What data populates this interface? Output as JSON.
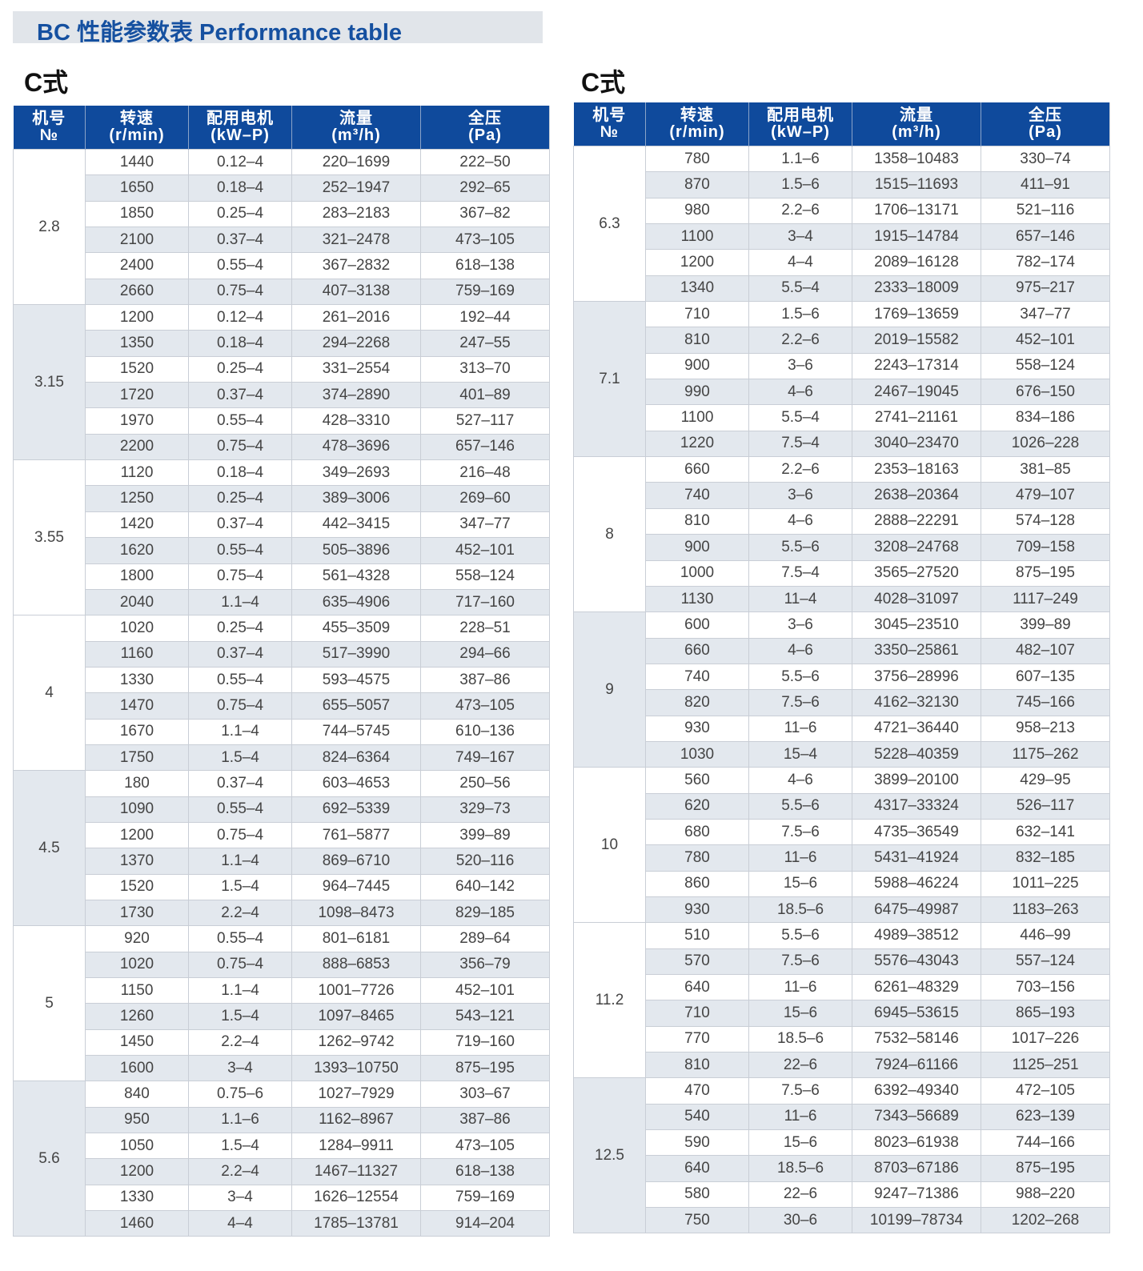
{
  "title": "BC 性能参数表  Performance table",
  "headers": {
    "no": [
      "机号",
      "№"
    ],
    "speed": [
      "转速",
      "(r/min)"
    ],
    "motor": [
      "配用电机",
      "(kW–P)"
    ],
    "flow": [
      "流量",
      "(m³/h)"
    ],
    "pressure": [
      "全压",
      "(Pa)"
    ]
  },
  "tables": [
    {
      "subtitle": "C式",
      "groups": [
        {
          "no": "2.8",
          "rows": [
            [
              "1440",
              "0.12–4",
              "220–1699",
              "222–50"
            ],
            [
              "1650",
              "0.18–4",
              "252–1947",
              "292–65"
            ],
            [
              "1850",
              "0.25–4",
              "283–2183",
              "367–82"
            ],
            [
              "2100",
              "0.37–4",
              "321–2478",
              "473–105"
            ],
            [
              "2400",
              "0.55–4",
              "367–2832",
              "618–138"
            ],
            [
              "2660",
              "0.75–4",
              "407–3138",
              "759–169"
            ]
          ]
        },
        {
          "no": "3.15",
          "rows": [
            [
              "1200",
              "0.12–4",
              "261–2016",
              "192–44"
            ],
            [
              "1350",
              "0.18–4",
              "294–2268",
              "247–55"
            ],
            [
              "1520",
              "0.25–4",
              "331–2554",
              "313–70"
            ],
            [
              "1720",
              "0.37–4",
              "374–2890",
              "401–89"
            ],
            [
              "1970",
              "0.55–4",
              "428–3310",
              "527–117"
            ],
            [
              "2200",
              "0.75–4",
              "478–3696",
              "657–146"
            ]
          ]
        },
        {
          "no": "3.55",
          "rows": [
            [
              "1120",
              "0.18–4",
              "349–2693",
              "216–48"
            ],
            [
              "1250",
              "0.25–4",
              "389–3006",
              "269–60"
            ],
            [
              "1420",
              "0.37–4",
              "442–3415",
              "347–77"
            ],
            [
              "1620",
              "0.55–4",
              "505–3896",
              "452–101"
            ],
            [
              "1800",
              "0.75–4",
              "561–4328",
              "558–124"
            ],
            [
              "2040",
              "1.1–4",
              "635–4906",
              "717–160"
            ]
          ]
        },
        {
          "no": "4",
          "rows": [
            [
              "1020",
              "0.25–4",
              "455–3509",
              "228–51"
            ],
            [
              "1160",
              "0.37–4",
              "517–3990",
              "294–66"
            ],
            [
              "1330",
              "0.55–4",
              "593–4575",
              "387–86"
            ],
            [
              "1470",
              "0.75–4",
              "655–5057",
              "473–105"
            ],
            [
              "1670",
              "1.1–4",
              "744–5745",
              "610–136"
            ],
            [
              "1750",
              "1.5–4",
              "824–6364",
              "749–167"
            ]
          ]
        },
        {
          "no": "4.5",
          "rows": [
            [
              "180",
              "0.37–4",
              "603–4653",
              "250–56"
            ],
            [
              "1090",
              "0.55–4",
              "692–5339",
              "329–73"
            ],
            [
              "1200",
              "0.75–4",
              "761–5877",
              "399–89"
            ],
            [
              "1370",
              "1.1–4",
              "869–6710",
              "520–116"
            ],
            [
              "1520",
              "1.5–4",
              "964–7445",
              "640–142"
            ],
            [
              "1730",
              "2.2–4",
              "1098–8473",
              "829–185"
            ]
          ]
        },
        {
          "no": "5",
          "rows": [
            [
              "920",
              "0.55–4",
              "801–6181",
              "289–64"
            ],
            [
              "1020",
              "0.75–4",
              "888–6853",
              "356–79"
            ],
            [
              "1150",
              "1.1–4",
              "1001–7726",
              "452–101"
            ],
            [
              "1260",
              "1.5–4",
              "1097–8465",
              "543–121"
            ],
            [
              "1450",
              "2.2–4",
              "1262–9742",
              "719–160"
            ],
            [
              "1600",
              "3–4",
              "1393–10750",
              "875–195"
            ]
          ]
        },
        {
          "no": "5.6",
          "rows": [
            [
              "840",
              "0.75–6",
              "1027–7929",
              "303–67"
            ],
            [
              "950",
              "1.1–6",
              "1162–8967",
              "387–86"
            ],
            [
              "1050",
              "1.5–4",
              "1284–9911",
              "473–105"
            ],
            [
              "1200",
              "2.2–4",
              "1467–11327",
              "618–138"
            ],
            [
              "1330",
              "3–4",
              "1626–12554",
              "759–169"
            ],
            [
              "1460",
              "4–4",
              "1785–13781",
              "914–204"
            ]
          ]
        }
      ]
    },
    {
      "subtitle": "C式",
      "groups": [
        {
          "no": "6.3",
          "rows": [
            [
              "780",
              "1.1–6",
              "1358–10483",
              "330–74"
            ],
            [
              "870",
              "1.5–6",
              "1515–11693",
              "411–91"
            ],
            [
              "980",
              "2.2–6",
              "1706–13171",
              "521–116"
            ],
            [
              "1100",
              "3–4",
              "1915–14784",
              "657–146"
            ],
            [
              "1200",
              "4–4",
              "2089–16128",
              "782–174"
            ],
            [
              "1340",
              "5.5–4",
              "2333–18009",
              "975–217"
            ]
          ]
        },
        {
          "no": "7.1",
          "rows": [
            [
              "710",
              "1.5–6",
              "1769–13659",
              "347–77"
            ],
            [
              "810",
              "2.2–6",
              "2019–15582",
              "452–101"
            ],
            [
              "900",
              "3–6",
              "2243–17314",
              "558–124"
            ],
            [
              "990",
              "4–6",
              "2467–19045",
              "676–150"
            ],
            [
              "1100",
              "5.5–4",
              "2741–21161",
              "834–186"
            ],
            [
              "1220",
              "7.5–4",
              "3040–23470",
              "1026–228"
            ]
          ]
        },
        {
          "no": "8",
          "rows": [
            [
              "660",
              "2.2–6",
              "2353–18163",
              "381–85"
            ],
            [
              "740",
              "3–6",
              "2638–20364",
              "479–107"
            ],
            [
              "810",
              "4–6",
              "2888–22291",
              "574–128"
            ],
            [
              "900",
              "5.5–6",
              "3208–24768",
              "709–158"
            ],
            [
              "1000",
              "7.5–4",
              "3565–27520",
              "875–195"
            ],
            [
              "1130",
              "11–4",
              "4028–31097",
              "1117–249"
            ]
          ]
        },
        {
          "no": "9",
          "rows": [
            [
              "600",
              "3–6",
              "3045–23510",
              "399–89"
            ],
            [
              "660",
              "4–6",
              "3350–25861",
              "482–107"
            ],
            [
              "740",
              "5.5–6",
              "3756–28996",
              "607–135"
            ],
            [
              "820",
              "7.5–6",
              "4162–32130",
              "745–166"
            ],
            [
              "930",
              "11–6",
              "4721–36440",
              "958–213"
            ],
            [
              "1030",
              "15–4",
              "5228–40359",
              "1175–262"
            ]
          ]
        },
        {
          "no": "10",
          "rows": [
            [
              "560",
              "4–6",
              "3899–20100",
              "429–95"
            ],
            [
              "620",
              "5.5–6",
              "4317–33324",
              "526–117"
            ],
            [
              "680",
              "7.5–6",
              "4735–36549",
              "632–141"
            ],
            [
              "780",
              "11–6",
              "5431–41924",
              "832–185"
            ],
            [
              "860",
              "15–6",
              "5988–46224",
              "1011–225"
            ],
            [
              "930",
              "18.5–6",
              "6475–49987",
              "1183–263"
            ]
          ]
        },
        {
          "no": "11.2",
          "rows": [
            [
              "510",
              "5.5–6",
              "4989–38512",
              "446–99"
            ],
            [
              "570",
              "7.5–6",
              "5576–43043",
              "557–124"
            ],
            [
              "640",
              "11–6",
              "6261–48329",
              "703–156"
            ],
            [
              "710",
              "15–6",
              "6945–53615",
              "865–193"
            ],
            [
              "770",
              "18.5–6",
              "7532–58146",
              "1017–226"
            ],
            [
              "810",
              "22–6",
              "7924–61166",
              "1125–251"
            ]
          ]
        },
        {
          "no": "12.5",
          "rows": [
            [
              "470",
              "7.5–6",
              "6392–49340",
              "472–105"
            ],
            [
              "540",
              "11–6",
              "7343–56689",
              "623–139"
            ],
            [
              "590",
              "15–6",
              "8023–61938",
              "744–166"
            ],
            [
              "640",
              "18.5–6",
              "8703–67186",
              "875–195"
            ],
            [
              "580",
              "22–6",
              "9247–71386",
              "988–220"
            ],
            [
              "750",
              "30–6",
              "10199–78734",
              "1202–268"
            ]
          ]
        }
      ]
    }
  ]
}
